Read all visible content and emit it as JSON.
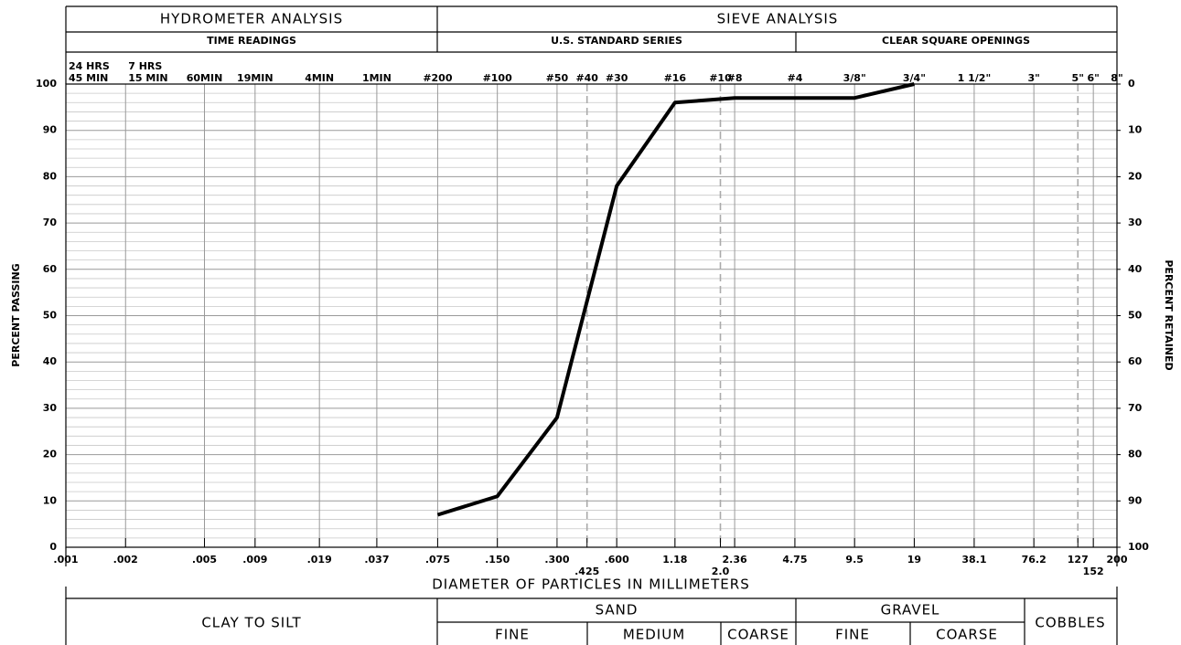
{
  "chart_data": {
    "type": "line",
    "x_scale": "log",
    "header": {
      "hydrometer": "HYDROMETER ANALYSIS",
      "sieve": "SIEVE ANALYSIS",
      "time_readings": "TIME READINGS",
      "us_standard": "U.S. STANDARD SERIES",
      "clear_square": "CLEAR SQUARE OPENINGS"
    },
    "xlabel": "DIAMETER OF PARTICLES IN MILLIMETERS",
    "ylabel": "PERCENT PASSING",
    "y2label": "PERCENT RETAINED",
    "x": [
      0.075,
      0.15,
      0.3,
      0.6,
      1.18,
      2.36,
      4.75,
      9.5,
      19
    ],
    "values": [
      7,
      11,
      28,
      78,
      96,
      97,
      97,
      97,
      100
    ],
    "color": "#000000",
    "xlim": [
      0.001,
      200
    ],
    "xticks": [
      {
        "value": 0.001,
        "label": ".001"
      },
      {
        "value": 0.002,
        "label": ".002"
      },
      {
        "value": 0.005,
        "label": ".005"
      },
      {
        "value": 0.009,
        "label": ".009"
      },
      {
        "value": 0.019,
        "label": ".019"
      },
      {
        "value": 0.037,
        "label": ".037"
      },
      {
        "value": 0.075,
        "label": ".075"
      },
      {
        "value": 0.15,
        "label": ".150"
      },
      {
        "value": 0.3,
        "label": ".300"
      },
      {
        "value": 0.425,
        "label": ".425",
        "style": "dashed"
      },
      {
        "value": 0.6,
        "label": ".600"
      },
      1.18,
      {
        "value": 2.0,
        "label": "2.0",
        "style": "dashed"
      },
      2.36,
      4.75,
      9.5,
      19,
      38.1,
      76.2,
      {
        "value": 127,
        "label": "127",
        "style": "dashed"
      },
      152,
      200
    ],
    "top_labels": [
      {
        "value": 0.001,
        "lines": [
          "24 HRS",
          "45 MIN"
        ]
      },
      {
        "value": 0.002,
        "lines": [
          "7 HRS",
          "15 MIN"
        ]
      },
      {
        "value": 0.005,
        "label": "60MIN"
      },
      {
        "value": 0.009,
        "label": "19MIN"
      },
      {
        "value": 0.019,
        "label": "4MIN"
      },
      {
        "value": 0.037,
        "label": "1MIN"
      },
      {
        "value": 0.075,
        "label": "#200"
      },
      {
        "value": 0.15,
        "label": "#100"
      },
      {
        "value": 0.3,
        "label": "#50"
      },
      {
        "value": 0.425,
        "label": "#40"
      },
      {
        "value": 0.6,
        "label": "#30"
      },
      {
        "value": 1.18,
        "label": "#16"
      },
      {
        "value": 2.0,
        "label": "#10"
      },
      {
        "value": 2.36,
        "label": "#8"
      },
      {
        "value": 4.75,
        "label": "#4"
      },
      {
        "value": 9.5,
        "label": "3/8\""
      },
      {
        "value": 19,
        "label": "3/4\""
      },
      {
        "value": 38.1,
        "label": "1 1/2\""
      },
      {
        "value": 76.2,
        "label": "3\""
      },
      {
        "value": 127,
        "label": "5\""
      },
      {
        "value": 152,
        "label": "6\""
      },
      {
        "value": 200,
        "label": "8\""
      }
    ],
    "ylim": [
      0,
      100
    ],
    "yticks": [
      0,
      10,
      20,
      30,
      40,
      50,
      60,
      70,
      80,
      90,
      100
    ],
    "yminor_ticks": [
      2,
      4,
      6,
      8,
      12,
      14,
      16,
      18,
      22,
      24,
      26,
      28,
      32,
      34,
      36,
      38,
      42,
      44,
      46,
      48,
      52,
      54,
      56,
      58,
      62,
      64,
      66,
      68,
      72,
      74,
      76,
      78,
      82,
      84,
      86,
      88,
      92,
      94,
      96,
      98
    ],
    "y2lim": [
      100,
      0
    ],
    "y2ticks": [
      0,
      10,
      20,
      30,
      40,
      50,
      60,
      70,
      80,
      90,
      100
    ],
    "grid": true,
    "classification": {
      "clay_silt": "CLAY TO SILT",
      "sand": "SAND",
      "sand_fine": "FINE",
      "sand_medium": "MEDIUM",
      "sand_coarse": "COARSE",
      "gravel": "GRAVEL",
      "gravel_fine": "FINE",
      "gravel_coarse": "COARSE",
      "cobbles": "COBBLES"
    }
  }
}
